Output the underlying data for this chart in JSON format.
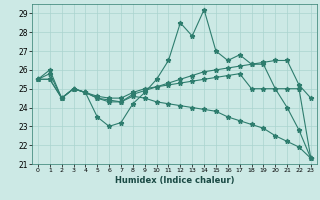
{
  "title": "",
  "xlabel": "Humidex (Indice chaleur)",
  "xlim": [
    -0.5,
    23.5
  ],
  "ylim": [
    21,
    29.5
  ],
  "yticks": [
    21,
    22,
    23,
    24,
    25,
    26,
    27,
    28,
    29
  ],
  "xticks": [
    0,
    1,
    2,
    3,
    4,
    5,
    6,
    7,
    8,
    9,
    10,
    11,
    12,
    13,
    14,
    15,
    16,
    17,
    18,
    19,
    20,
    21,
    22,
    23
  ],
  "bg_color": "#cce9e5",
  "grid_color": "#aad4cf",
  "line_color": "#2e7d6e",
  "line_width": 0.8,
  "marker": "*",
  "markersize": 3.5,
  "series": [
    [
      25.5,
      26.0,
      24.5,
      25.0,
      24.8,
      23.5,
      23.0,
      23.2,
      24.2,
      24.8,
      25.5,
      26.5,
      28.5,
      27.8,
      29.2,
      27.0,
      26.5,
      26.8,
      26.3,
      26.3,
      25.0,
      24.0,
      22.8,
      21.3
    ],
    [
      25.5,
      25.8,
      24.5,
      25.0,
      24.8,
      24.5,
      24.4,
      24.3,
      24.7,
      24.9,
      25.1,
      25.3,
      25.5,
      25.7,
      25.9,
      26.0,
      26.1,
      26.2,
      26.3,
      26.4,
      26.5,
      26.5,
      25.2,
      24.5
    ],
    [
      25.5,
      25.5,
      24.5,
      25.0,
      24.8,
      24.6,
      24.5,
      24.5,
      24.8,
      25.0,
      25.1,
      25.2,
      25.3,
      25.4,
      25.5,
      25.6,
      25.7,
      25.8,
      25.0,
      25.0,
      25.0,
      25.0,
      25.0,
      21.3
    ],
    [
      25.5,
      25.5,
      24.5,
      25.0,
      24.8,
      24.5,
      24.3,
      24.3,
      24.6,
      24.5,
      24.3,
      24.2,
      24.1,
      24.0,
      23.9,
      23.8,
      23.5,
      23.3,
      23.1,
      22.9,
      22.5,
      22.2,
      21.9,
      21.3
    ]
  ]
}
